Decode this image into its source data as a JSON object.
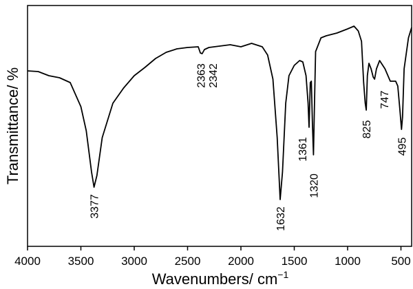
{
  "chart_data": {
    "type": "line",
    "x_label": "Wavenumbers/ cm",
    "x_label_sup": "−1",
    "y_label": "Transmittance/ %",
    "x": [
      4000,
      3900,
      3800,
      3700,
      3600,
      3500,
      3450,
      3400,
      3377,
      3350,
      3300,
      3200,
      3100,
      3000,
      2900,
      2800,
      2700,
      2600,
      2500,
      2400,
      2380,
      2363,
      2342,
      2300,
      2200,
      2100,
      2000,
      1900,
      1800,
      1750,
      1700,
      1660,
      1632,
      1610,
      1580,
      1550,
      1500,
      1450,
      1420,
      1390,
      1370,
      1361,
      1350,
      1340,
      1330,
      1320,
      1310,
      1300,
      1250,
      1200,
      1100,
      1000,
      940,
      900,
      870,
      850,
      835,
      825,
      815,
      800,
      780,
      760,
      747,
      730,
      700,
      650,
      600,
      550,
      530,
      510,
      495,
      485,
      470,
      430,
      400
    ],
    "series": [
      {
        "name": null,
        "color": "#000000",
        "values": [
          255,
          254,
          248,
          245,
          238,
          203,
          168,
          108,
          86,
          103,
          158,
          208,
          230,
          248,
          260,
          273,
          282,
          287,
          289,
          290,
          281,
          280,
          286,
          289,
          291,
          293,
          290,
          295,
          290,
          278,
          243,
          158,
          68,
          108,
          208,
          248,
          263,
          270,
          268,
          248,
          208,
          173,
          238,
          240,
          178,
          133,
          208,
          283,
          303,
          306,
          310,
          316,
          320,
          313,
          298,
          238,
          208,
          198,
          248,
          266,
          258,
          246,
          243,
          258,
          270,
          258,
          240,
          240,
          233,
          198,
          170,
          188,
          258,
          303,
          318
        ]
      }
    ],
    "xlim": [
      4000,
      400
    ],
    "ylim": [
      0,
      350
    ],
    "xticks": [
      4000,
      3500,
      3000,
      2500,
      2000,
      1500,
      1000,
      500
    ],
    "annotations": [
      {
        "text": "3377",
        "x": 3377
      },
      {
        "text": "2363",
        "x": 2363
      },
      {
        "text": "2342",
        "x": 2342
      },
      {
        "text": "1632",
        "x": 1632
      },
      {
        "text": "1361",
        "x": 1361
      },
      {
        "text": "1320",
        "x": 1320
      },
      {
        "text": "825",
        "x": 825
      },
      {
        "text": "747",
        "x": 747
      },
      {
        "text": "495",
        "x": 495
      }
    ],
    "grid": false
  }
}
